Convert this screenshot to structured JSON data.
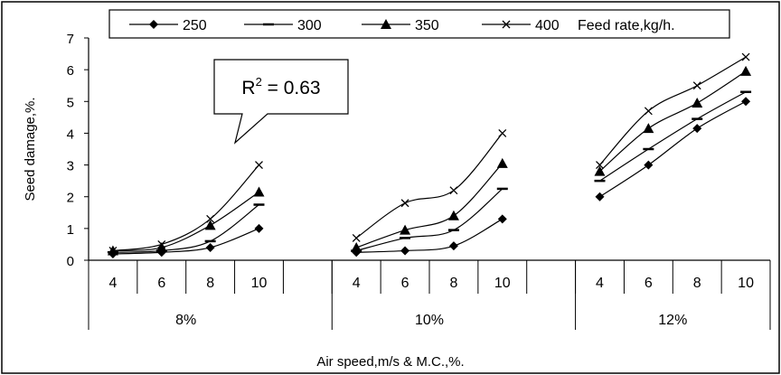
{
  "chart_data": {
    "type": "line",
    "xlabel": "Air speed,m/s & M.C.,%.",
    "ylabel": "Seed damage,%.",
    "ylim": [
      0,
      7
    ],
    "yticks": [
      0,
      1,
      2,
      3,
      4,
      5,
      6,
      7
    ],
    "groups": [
      {
        "label": "8%",
        "categories": [
          "4",
          "6",
          "8",
          "10"
        ]
      },
      {
        "label": "10%",
        "categories": [
          "4",
          "6",
          "8",
          "10"
        ]
      },
      {
        "label": "12%",
        "categories": [
          "4",
          "6",
          "8",
          "10"
        ]
      }
    ],
    "legend": {
      "title": "Feed rate,kg/h.",
      "position": "top"
    },
    "annotation": {
      "text": "R",
      "sup": "2",
      "rest": " = 0.63"
    },
    "series": [
      {
        "name": "250",
        "marker": "diamond",
        "values": [
          [
            0.2,
            0.25,
            0.4,
            1.0
          ],
          [
            0.25,
            0.3,
            0.45,
            1.3
          ],
          [
            2.0,
            3.0,
            4.15,
            5.0
          ]
        ]
      },
      {
        "name": "300",
        "marker": "dash",
        "values": [
          [
            0.25,
            0.3,
            0.6,
            1.75
          ],
          [
            0.3,
            0.7,
            0.95,
            2.25
          ],
          [
            2.5,
            3.5,
            4.45,
            5.3
          ]
        ]
      },
      {
        "name": "350",
        "marker": "triangle",
        "values": [
          [
            0.3,
            0.4,
            1.1,
            2.15
          ],
          [
            0.4,
            0.95,
            1.4,
            3.05
          ],
          [
            2.8,
            4.15,
            4.95,
            5.95
          ]
        ]
      },
      {
        "name": "400",
        "marker": "x",
        "values": [
          [
            0.3,
            0.5,
            1.3,
            3.0
          ],
          [
            0.7,
            1.8,
            2.2,
            4.0
          ],
          [
            3.0,
            4.7,
            5.5,
            6.4
          ]
        ]
      }
    ],
    "grid": false
  }
}
